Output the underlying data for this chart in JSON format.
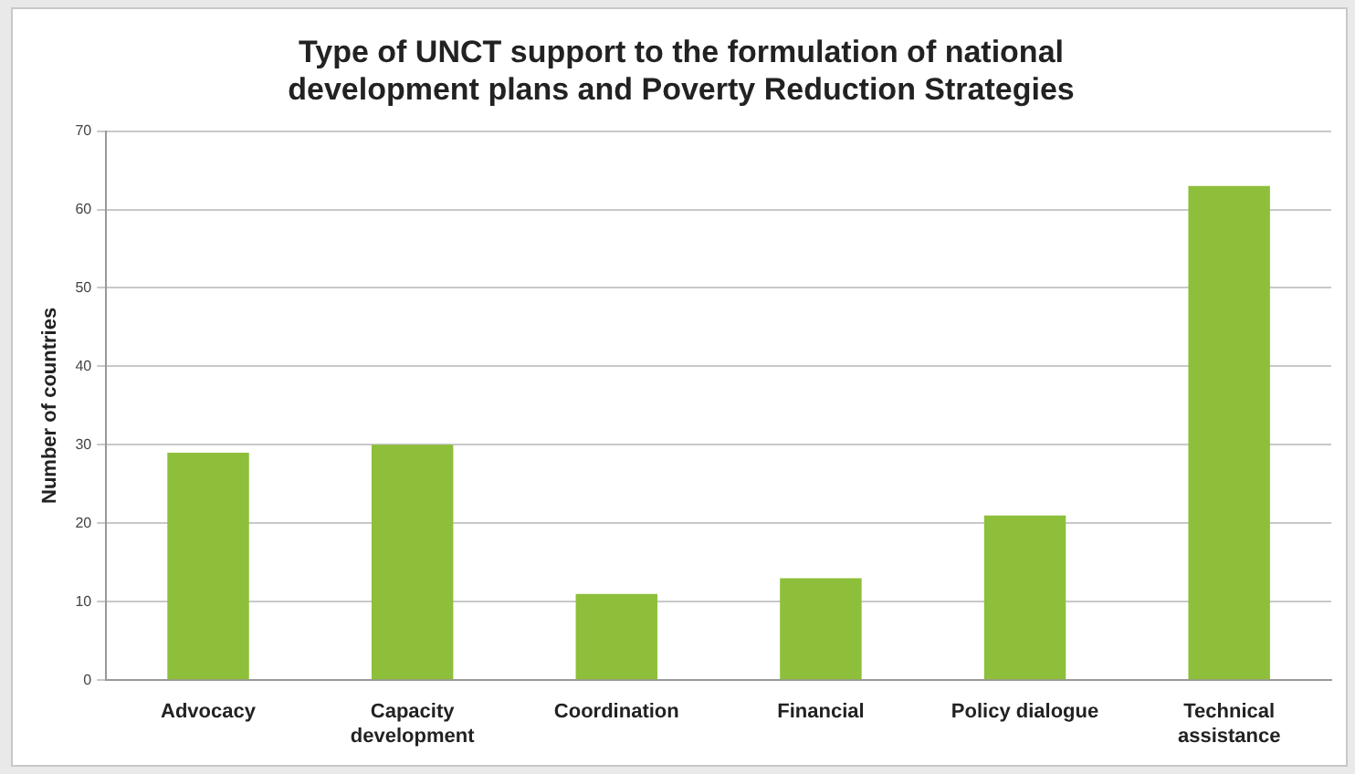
{
  "chart_data": {
    "type": "bar",
    "title": "Type of UNCT support to the formulation of national development plans and Poverty Reduction Strategies",
    "ylabel": "Number of countries",
    "categories": [
      "Advocacy",
      "Capacity development",
      "Coordination",
      "Financial",
      "Policy dialogue",
      "Technical assistance"
    ],
    "values": [
      29,
      30,
      11,
      13,
      21,
      63
    ],
    "color": "#8dbf3a",
    "ylim": [
      0,
      70
    ],
    "yticks": [
      0,
      10,
      20,
      30,
      40,
      50,
      60,
      70
    ],
    "grid": "y",
    "legend": false
  }
}
